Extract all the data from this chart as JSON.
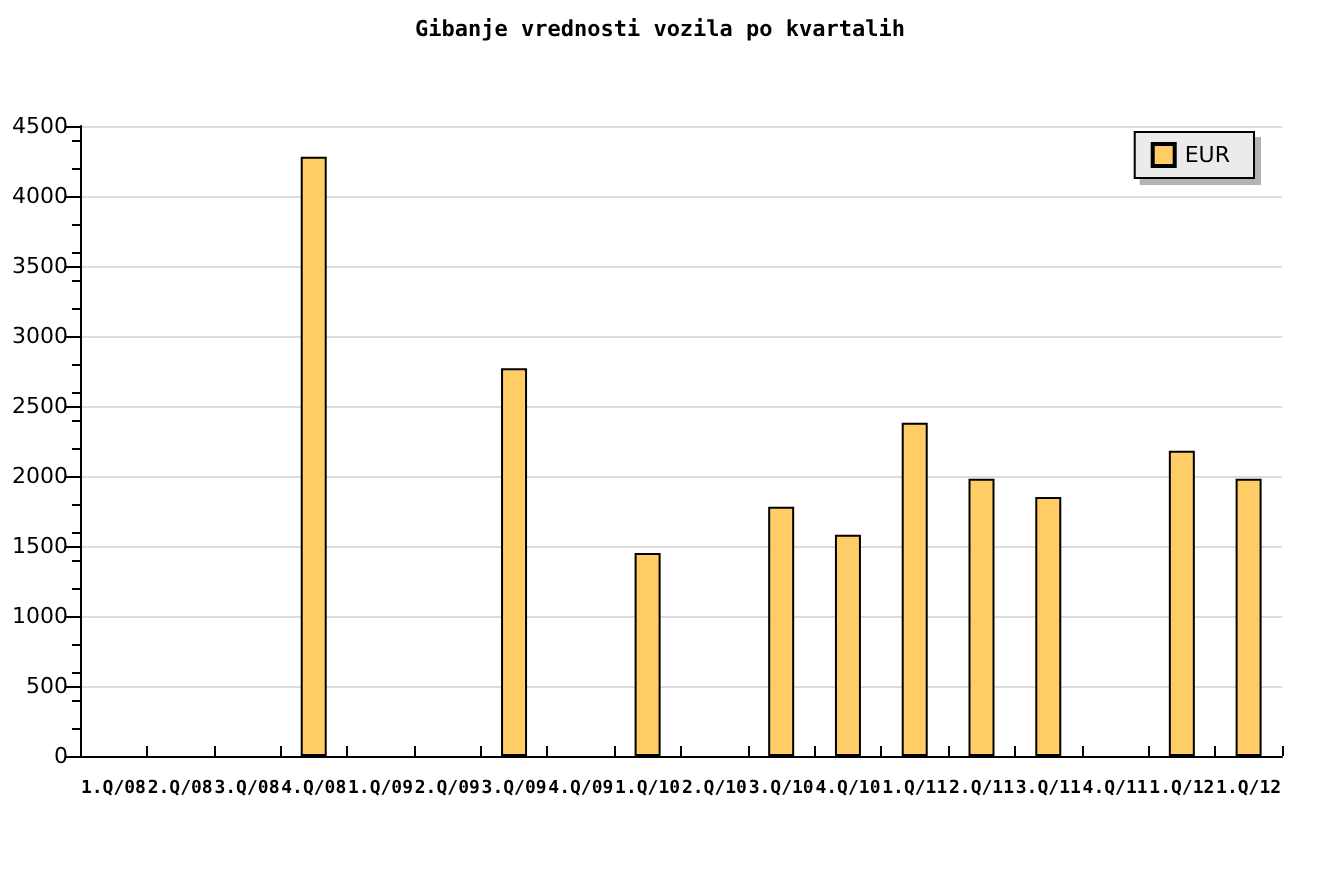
{
  "chart_data": {
    "type": "bar",
    "title": "Gibanje vrednosti vozila po kvartalih",
    "categories": [
      "1.Q/08",
      "2.Q/08",
      "3.Q/08",
      "4.Q/08",
      "1.Q/09",
      "2.Q/09",
      "3.Q/09",
      "4.Q/09",
      "1.Q/10",
      "2.Q/10",
      "3.Q/10",
      "4.Q/10",
      "1.Q/11",
      "2.Q/11",
      "3.Q/11",
      "4.Q/11",
      "1.Q/12",
      "1.Q/12"
    ],
    "series": [
      {
        "name": "EUR",
        "color": "#ffcc66",
        "values": [
          null,
          null,
          null,
          4280,
          null,
          null,
          2770,
          null,
          1450,
          null,
          1780,
          1580,
          2380,
          1980,
          1850,
          null,
          2180,
          1980
        ]
      }
    ],
    "ylim": [
      0,
      4500
    ],
    "yticks": [
      0,
      500,
      1000,
      1500,
      2000,
      2500,
      3000,
      3500,
      4000,
      4500
    ],
    "grid": "y",
    "legend": "top right"
  }
}
